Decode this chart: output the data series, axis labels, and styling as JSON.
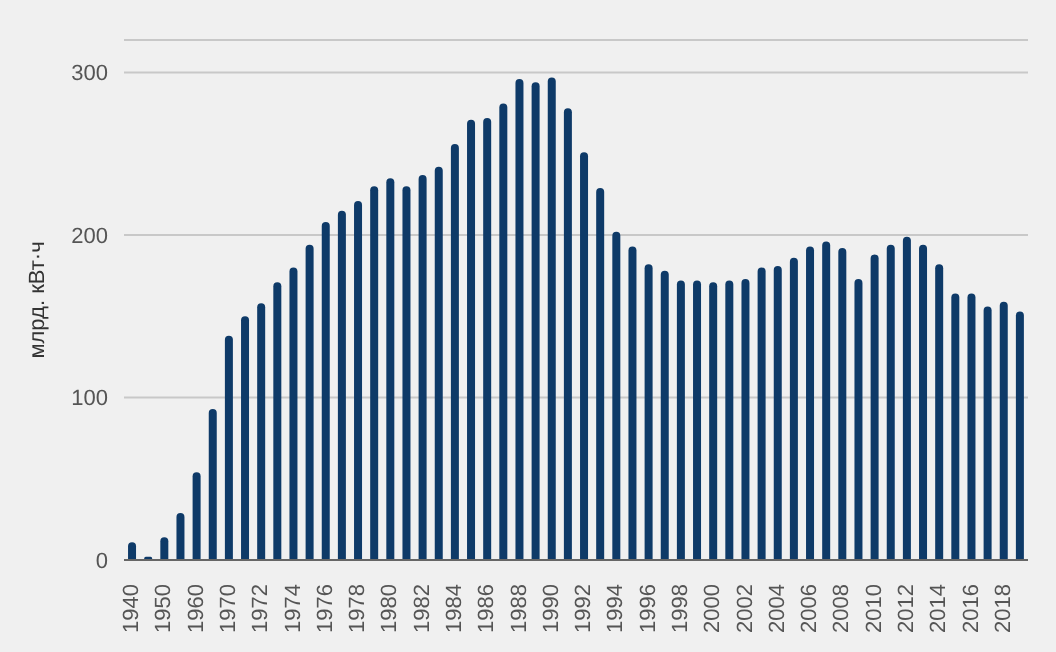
{
  "chart_data": {
    "type": "bar",
    "ylabel": "млрд. кВт·ч",
    "categories": [
      "1940",
      null,
      "1950",
      null,
      "1960",
      null,
      "1970",
      null,
      "1972",
      null,
      "1974",
      null,
      "1976",
      null,
      "1978",
      null,
      "1980",
      null,
      "1982",
      null,
      "1984",
      null,
      "1986",
      null,
      "1988",
      null,
      "1990",
      null,
      "1992",
      null,
      "1994",
      null,
      "1996",
      null,
      "1998",
      null,
      "2000",
      null,
      "2002",
      null,
      "2004",
      null,
      "2006",
      null,
      "2008",
      null,
      "2010",
      null,
      "2012",
      null,
      "2014",
      null,
      "2016",
      null,
      "2018",
      null
    ],
    "values": [
      11,
      2,
      14,
      29,
      54,
      93,
      138,
      150,
      158,
      171,
      180,
      194,
      208,
      215,
      221,
      230,
      235,
      230,
      237,
      242,
      256,
      271,
      272,
      281,
      296,
      294,
      297,
      278,
      251,
      229,
      202,
      193,
      182,
      178,
      172,
      172,
      171,
      172,
      173,
      180,
      181,
      186,
      193,
      196,
      192,
      173,
      188,
      194,
      199,
      194,
      182,
      164,
      164,
      156,
      159,
      153
    ],
    "color": "#0e3a68",
    "ylim": [
      0,
      320
    ],
    "yticks": [
      0,
      100,
      200,
      300
    ],
    "grid": "y"
  }
}
